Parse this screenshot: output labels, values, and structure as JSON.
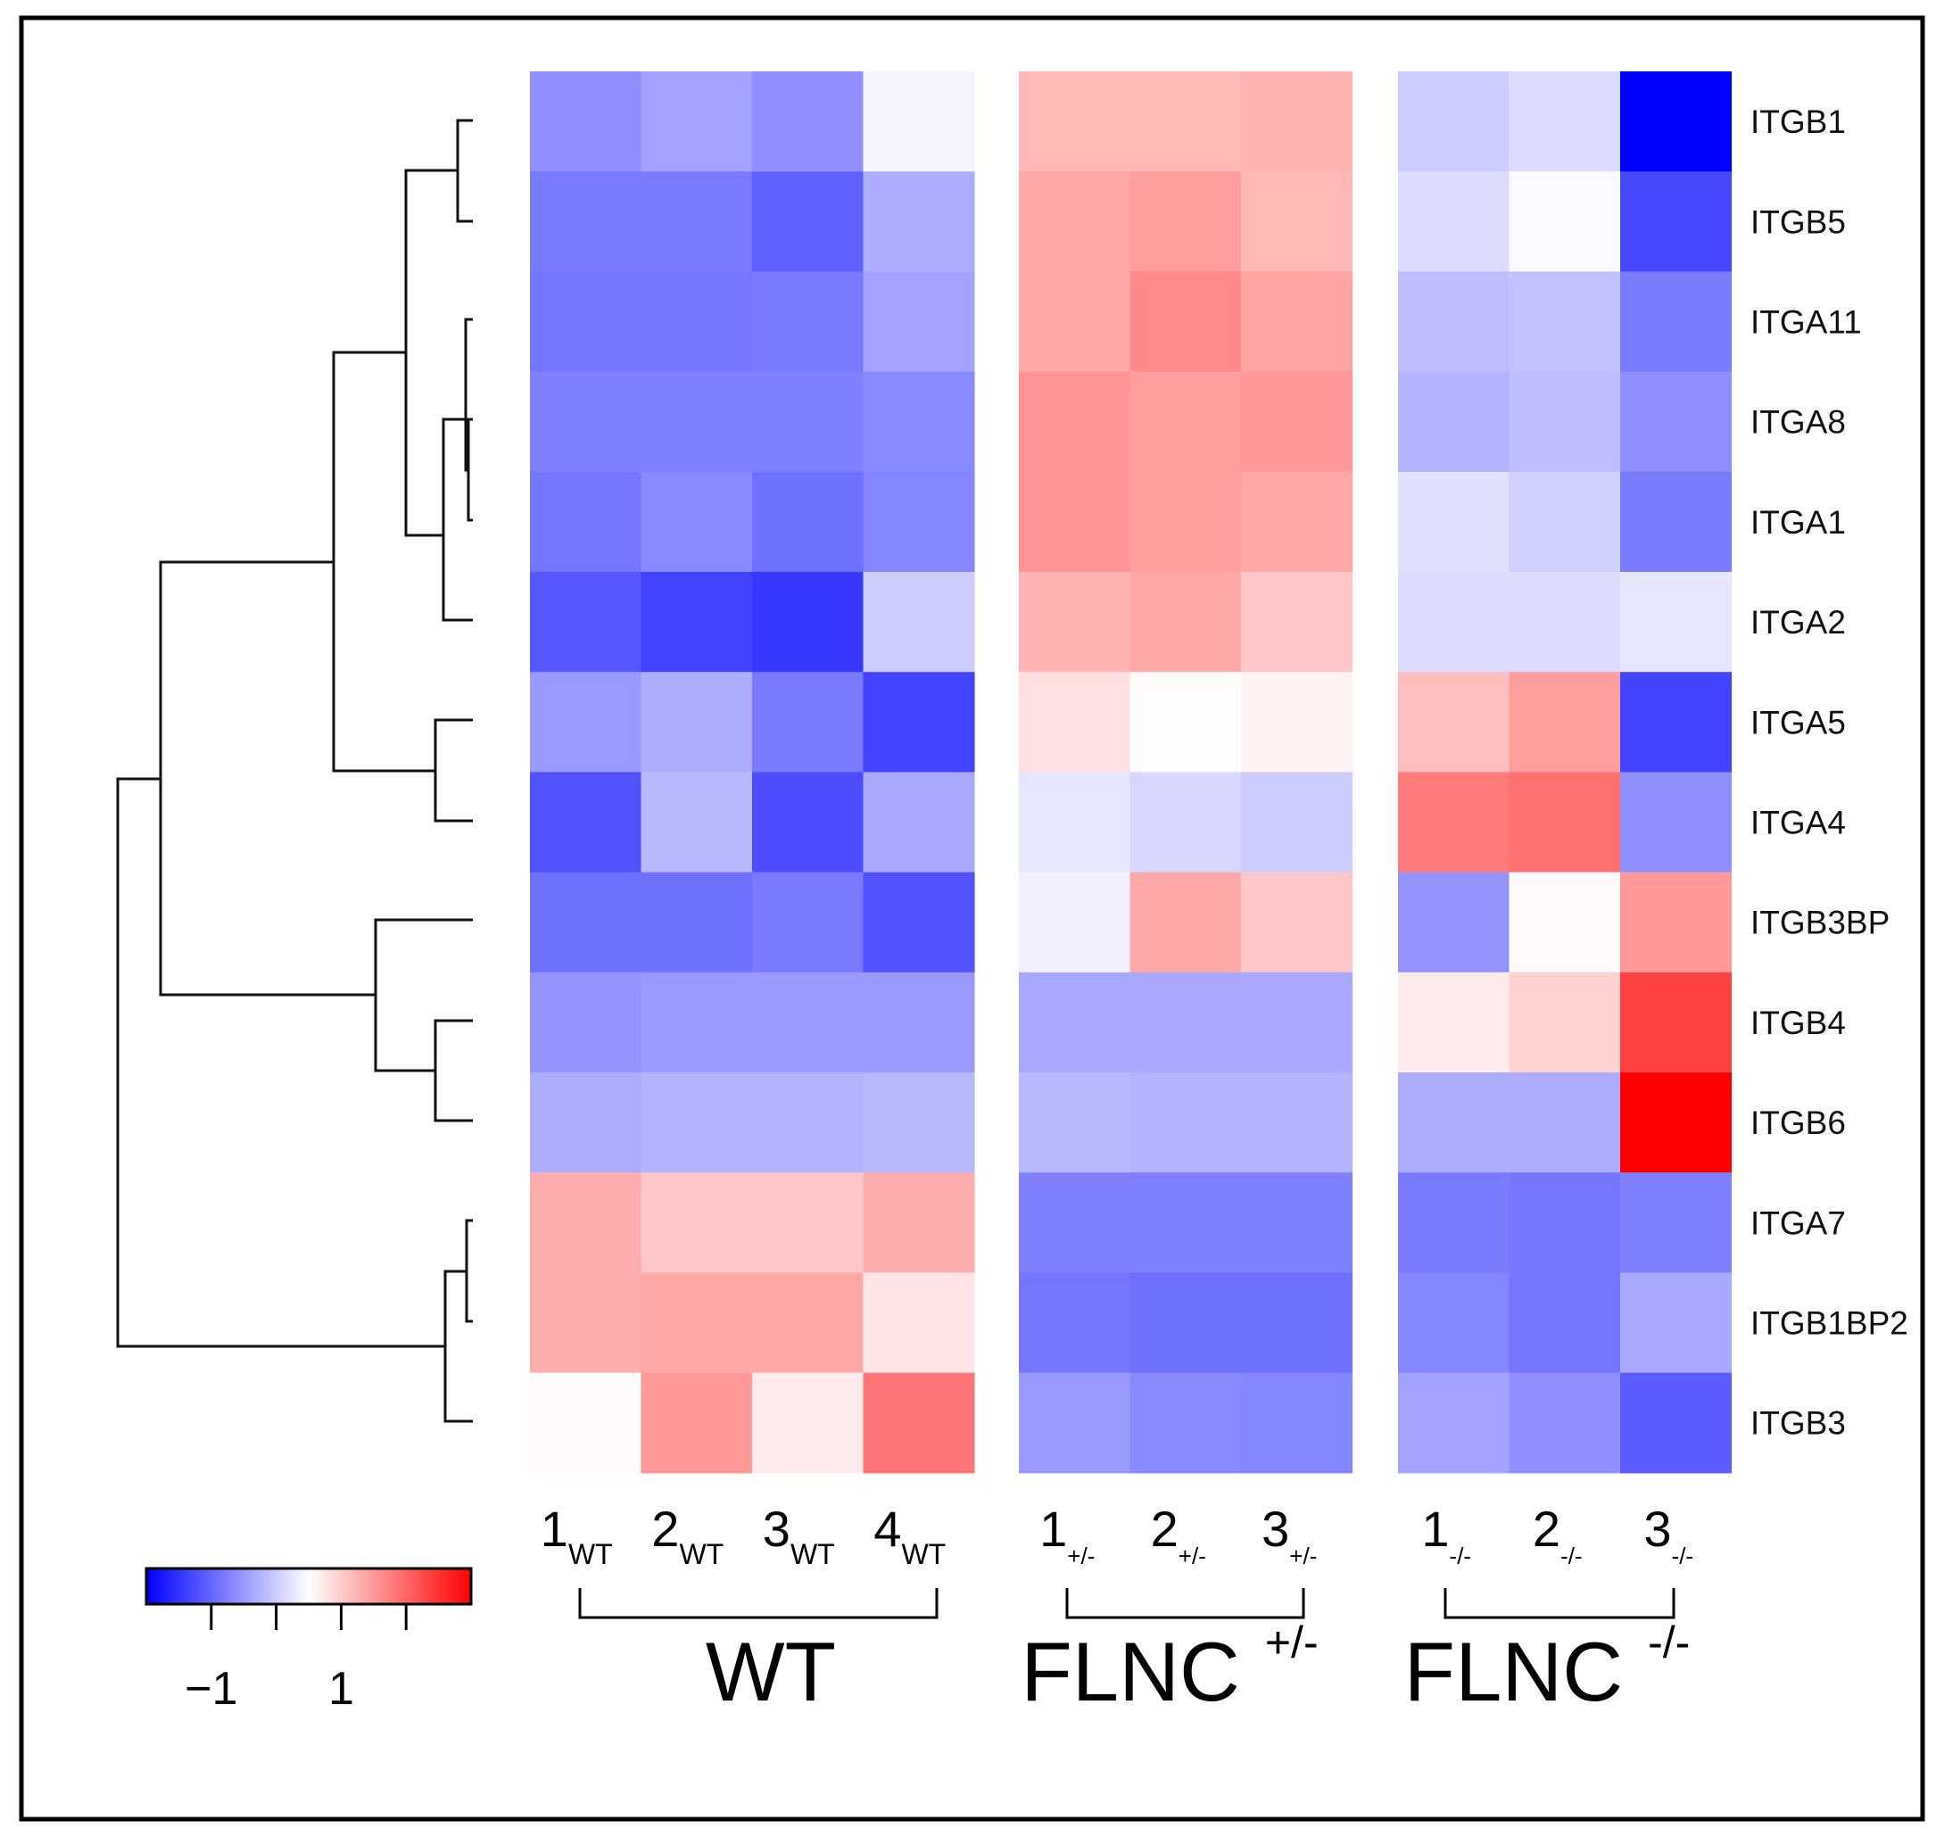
{
  "chart_data": {
    "type": "heatmap",
    "rows": [
      "ITGB1",
      "ITGB5",
      "ITGA11",
      "ITGA8",
      "ITGA1",
      "ITGA2",
      "ITGA5",
      "ITGA4",
      "ITGB3BP",
      "ITGB4",
      "ITGB6",
      "ITGA7",
      "ITGB1BP2",
      "ITGB3"
    ],
    "groups": [
      {
        "name": "WT",
        "superscript": "",
        "columns": [
          {
            "num": "1",
            "sub": "WT"
          },
          {
            "num": "2",
            "sub": "WT"
          },
          {
            "num": "3",
            "sub": "WT"
          },
          {
            "num": "4",
            "sub": "WT"
          }
        ]
      },
      {
        "name": "FLNC",
        "superscript": "+/-",
        "columns": [
          {
            "num": "1",
            "sub": "+/-"
          },
          {
            "num": "2",
            "sub": "+/-"
          },
          {
            "num": "3",
            "sub": "+/-"
          }
        ]
      },
      {
        "name": "FLNC",
        "superscript": "-/-",
        "columns": [
          {
            "num": "1",
            "sub": "-/-"
          },
          {
            "num": "2",
            "sub": "-/-"
          },
          {
            "num": "3",
            "sub": "-/-"
          }
        ]
      }
    ],
    "values": [
      [
        -1.1,
        -0.9,
        -1.1,
        -0.1,
        0.7,
        0.7,
        0.75,
        -0.5,
        -0.35,
        -2.5
      ],
      [
        -1.3,
        -1.3,
        -1.55,
        -0.8,
        0.85,
        0.95,
        0.7,
        -0.35,
        -0.05,
        -1.8
      ],
      [
        -1.35,
        -1.35,
        -1.3,
        -0.9,
        0.85,
        1.15,
        0.9,
        -0.65,
        -0.6,
        -1.3
      ],
      [
        -1.25,
        -1.25,
        -1.25,
        -1.15,
        1.05,
        0.95,
        1.0,
        -0.75,
        -0.65,
        -1.1
      ],
      [
        -1.35,
        -1.15,
        -1.4,
        -1.2,
        1.05,
        0.95,
        0.85,
        -0.3,
        -0.45,
        -1.3
      ],
      [
        -1.65,
        -1.85,
        -1.95,
        -0.5,
        0.75,
        0.85,
        0.55,
        -0.35,
        -0.35,
        -0.25
      ],
      [
        -1.0,
        -0.8,
        -1.3,
        -1.85,
        0.3,
        0.03,
        0.12,
        0.65,
        0.95,
        -1.85
      ],
      [
        -1.7,
        -0.7,
        -1.75,
        -0.85,
        -0.25,
        -0.4,
        -0.5,
        1.3,
        1.4,
        -1.1
      ],
      [
        -1.4,
        -1.4,
        -1.3,
        -1.7,
        -0.15,
        0.85,
        0.55,
        -1.05,
        0.05,
        1.0
      ],
      [
        -1.05,
        -1.0,
        -1.0,
        -1.0,
        -0.85,
        -0.85,
        -0.85,
        0.2,
        0.45,
        1.85
      ],
      [
        -0.8,
        -0.75,
        -0.75,
        -0.7,
        -0.7,
        -0.75,
        -0.75,
        -0.8,
        -0.8,
        2.5
      ],
      [
        0.8,
        0.55,
        0.55,
        0.8,
        -1.25,
        -1.25,
        -1.25,
        -1.3,
        -1.35,
        -1.25
      ],
      [
        0.8,
        0.85,
        0.85,
        0.25,
        -1.35,
        -1.4,
        -1.4,
        -1.2,
        -1.35,
        -0.85
      ],
      [
        0.04,
        1.0,
        0.2,
        1.35,
        -1.0,
        -1.15,
        -1.2,
        -0.9,
        -1.1,
        -1.6
      ]
    ],
    "colorbar": {
      "range": [
        -2.5,
        2.5
      ],
      "ticks": [
        -1.5,
        -0.5,
        0.5,
        1.5
      ],
      "tick_labels": [
        "−1",
        "",
        "1",
        ""
      ],
      "colors": [
        "#0000ff",
        "#ffffff",
        "#ff0000"
      ]
    },
    "dendrogram": "row clustering tree drawn on the left side"
  }
}
